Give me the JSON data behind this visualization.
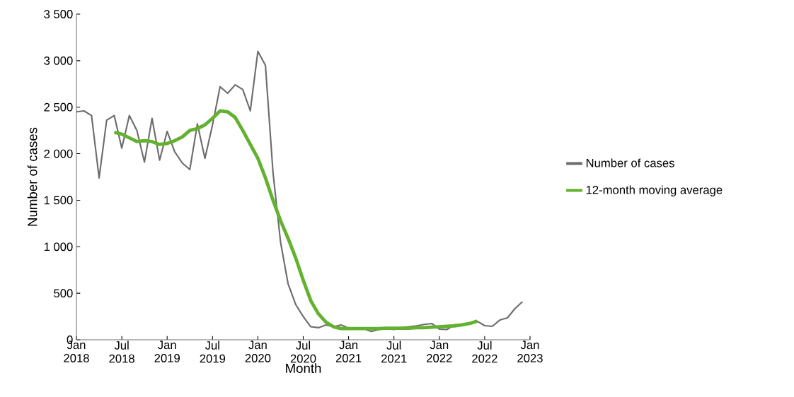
{
  "chart_data": {
    "type": "line",
    "xlabel": "Month",
    "ylabel": "Number of cases",
    "xlim": [
      "2018-01",
      "2023-01"
    ],
    "xticks": [
      {
        "value": "2018-01",
        "label": "Jan 2018"
      },
      {
        "value": "2018-07",
        "label": "Jul 2018"
      },
      {
        "value": "2019-01",
        "label": "Jan 2019"
      },
      {
        "value": "2019-07",
        "label": "Jul 2019"
      },
      {
        "value": "2020-01",
        "label": "Jan 2020"
      },
      {
        "value": "2020-07",
        "label": "Jul 2020"
      },
      {
        "value": "2021-01",
        "label": "Jan 2021"
      },
      {
        "value": "2021-07",
        "label": "Jul 2021"
      },
      {
        "value": "2022-01",
        "label": "Jan 2022"
      },
      {
        "value": "2022-07",
        "label": "Jul 2022"
      },
      {
        "value": "2023-01",
        "label": "Jan 2023"
      }
    ],
    "ylim": [
      0,
      3500
    ],
    "yticks": [
      0,
      500,
      {
        "value": 1000,
        "label": "1 000"
      },
      {
        "value": 1500,
        "label": "1 500"
      },
      {
        "value": 2000,
        "label": "2 000"
      },
      {
        "value": 2500,
        "label": "2 500"
      },
      {
        "value": 3000,
        "label": "3 000"
      },
      {
        "value": 3500,
        "label": "3 500"
      }
    ],
    "legend": "right",
    "grid": false,
    "marker": "none",
    "line_style": "solid",
    "series": [
      {
        "name": "Number of cases",
        "color": "#6d6d6d",
        "x": [
          "2018-01",
          "2018-02",
          "2018-03",
          "2018-04",
          "2018-05",
          "2018-06",
          "2018-07",
          "2018-08",
          "2018-09",
          "2018-10",
          "2018-11",
          "2018-12",
          "2019-01",
          "2019-02",
          "2019-03",
          "2019-04",
          "2019-05",
          "2019-06",
          "2019-07",
          "2019-08",
          "2019-09",
          "2019-10",
          "2019-11",
          "2019-12",
          "2020-01",
          "2020-02",
          "2020-03",
          "2020-04",
          "2020-05",
          "2020-06",
          "2020-07",
          "2020-08",
          "2020-09",
          "2020-10",
          "2020-11",
          "2020-12",
          "2021-01",
          "2021-02",
          "2021-03",
          "2021-04",
          "2021-05",
          "2021-06",
          "2021-07",
          "2021-08",
          "2021-09",
          "2021-10",
          "2021-11",
          "2021-12",
          "2022-01",
          "2022-02",
          "2022-03",
          "2022-04",
          "2022-05",
          "2022-06",
          "2022-07",
          "2022-08",
          "2022-09",
          "2022-10",
          "2022-11",
          "2022-12"
        ],
        "values": [
          2450,
          2460,
          2410,
          1740,
          2360,
          2410,
          2060,
          2410,
          2250,
          1910,
          2380,
          1930,
          2240,
          2020,
          1900,
          1830,
          2320,
          1950,
          2310,
          2720,
          2650,
          2740,
          2690,
          2460,
          3100,
          2950,
          1800,
          1050,
          600,
          380,
          250,
          140,
          130,
          160,
          140,
          160,
          125,
          120,
          120,
          90,
          110,
          120,
          110,
          130,
          140,
          150,
          165,
          175,
          114,
          110,
          160,
          165,
          175,
          200,
          152,
          144,
          212,
          235,
          334,
          410
        ]
      },
      {
        "name": "12-month moving average",
        "color": "#62b22f",
        "x": [
          "2018-06",
          "2018-07",
          "2018-08",
          "2018-09",
          "2018-10",
          "2018-11",
          "2018-12",
          "2019-01",
          "2019-02",
          "2019-03",
          "2019-04",
          "2019-05",
          "2019-06",
          "2019-07",
          "2019-08",
          "2019-09",
          "2019-10",
          "2019-11",
          "2019-12",
          "2020-01",
          "2020-02",
          "2020-03",
          "2020-04",
          "2020-05",
          "2020-06",
          "2020-07",
          "2020-08",
          "2020-09",
          "2020-10",
          "2020-11",
          "2020-12",
          "2021-01",
          "2021-02",
          "2021-03",
          "2021-04",
          "2021-05",
          "2021-06",
          "2021-07",
          "2021-08",
          "2021-09",
          "2021-10",
          "2021-11",
          "2021-12",
          "2022-01",
          "2022-02",
          "2022-03",
          "2022-04",
          "2022-05",
          "2022-06"
        ],
        "values": [
          2230,
          2210,
          2170,
          2130,
          2140,
          2130,
          2100,
          2110,
          2140,
          2180,
          2250,
          2270,
          2310,
          2380,
          2460,
          2450,
          2390,
          2250,
          2100,
          1950,
          1740,
          1500,
          1280,
          1090,
          880,
          640,
          420,
          280,
          190,
          140,
          120,
          120,
          120,
          120,
          120,
          120,
          125,
          125,
          125,
          125,
          130,
          130,
          135,
          140,
          145,
          150,
          160,
          175,
          200
        ]
      }
    ]
  }
}
